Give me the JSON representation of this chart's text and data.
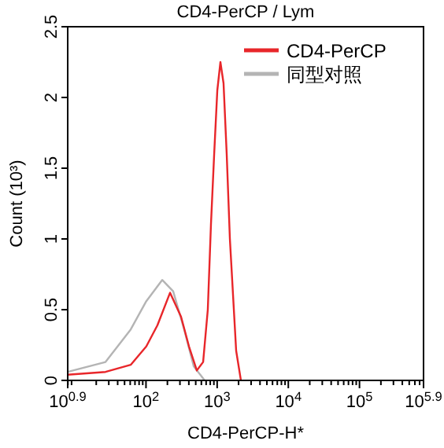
{
  "chart_data": {
    "type": "line",
    "title": "CD4-PerCP / Lym",
    "xlabel": "CD4-PerCP-H*",
    "ylabel": "Count (10³)",
    "log": "x",
    "xlim": [
      7.943,
      794328
    ],
    "xticks": [
      {
        "value": 7.943,
        "label": "10$^{0.9}$"
      },
      {
        "value": 100,
        "label": "10$^{2}$"
      },
      {
        "value": 1000,
        "label": "10$^{3}$"
      },
      {
        "value": 10000,
        "label": "10$^{4}$"
      },
      {
        "value": 100000,
        "label": "10$^{5}$"
      },
      {
        "value": 794328,
        "label": "10$^{5.9}$"
      }
    ],
    "ylim": [
      0,
      2.5
    ],
    "yticks": [
      0,
      0.5,
      1,
      1.5,
      2,
      2.5
    ],
    "legend": "top right",
    "series": [
      {
        "name": "CD4-PerCP",
        "color": "#e8262a",
        "x": [
          7.943,
          27,
          61,
          101,
          145,
          218,
          311,
          402,
          518,
          635,
          739,
          818,
          908,
          1005,
          1112,
          1230,
          1362,
          1510,
          1849,
          2158
        ],
        "values": [
          0.04,
          0.06,
          0.11,
          0.24,
          0.39,
          0.62,
          0.45,
          0.24,
          0.07,
          0.13,
          0.5,
          1.1,
          1.6,
          2.05,
          2.25,
          2.1,
          1.6,
          1.0,
          0.21,
          0
        ]
      },
      {
        "name": "同型对照",
        "color": "#b4b4b4",
        "x": [
          7.943,
          27,
          61,
          101,
          169,
          241,
          344,
          468,
          668
        ],
        "values": [
          0.06,
          0.13,
          0.36,
          0.56,
          0.71,
          0.63,
          0.36,
          0.1,
          0
        ]
      }
    ]
  }
}
